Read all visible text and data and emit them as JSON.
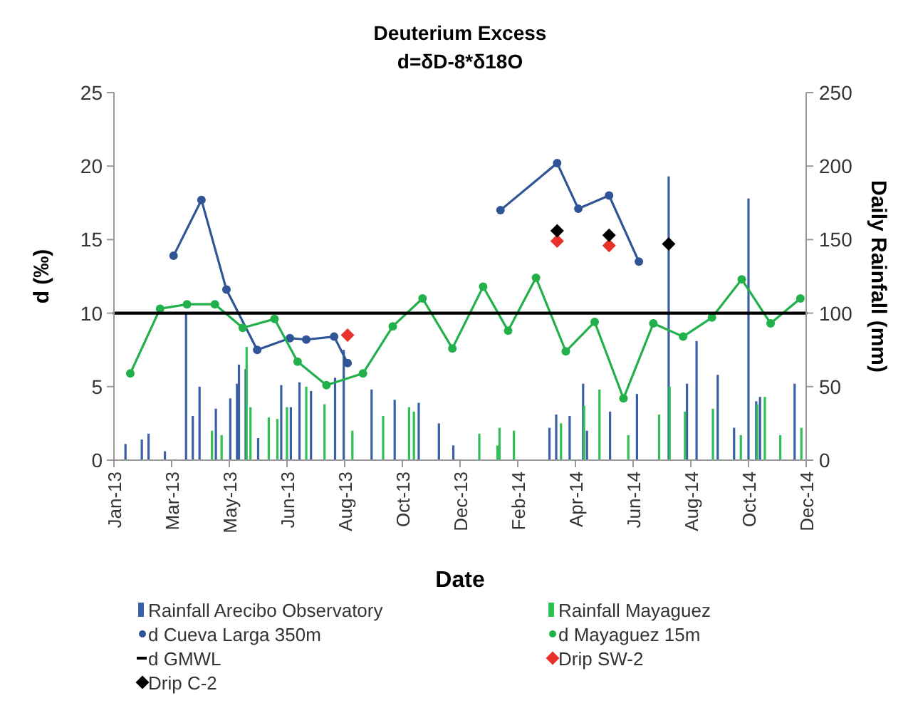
{
  "chart_data": {
    "type": "line",
    "title": "Deuterium Excess",
    "subtitle": "d=δD-8*δ18O",
    "xlabel": "Date",
    "ylabel": "d (‰)",
    "y2label": "Daily Rainfall (mm)",
    "xlim": [
      "2013-01-01",
      "2014-12-22"
    ],
    "xticks": [
      {
        "value": "2013-01-01",
        "label": "Jan-13"
      },
      {
        "value": "2013-03-02",
        "label": "Mar-13"
      },
      {
        "value": "2013-05-01",
        "label": "May-13"
      },
      {
        "value": "2013-06-30",
        "label": "Jun-13"
      },
      {
        "value": "2013-08-29",
        "label": "Aug-13"
      },
      {
        "value": "2013-10-28",
        "label": "Oct-13"
      },
      {
        "value": "2013-12-27",
        "label": "Dec-13"
      },
      {
        "value": "2014-02-25",
        "label": "Feb-14"
      },
      {
        "value": "2014-04-26",
        "label": "Apr-14"
      },
      {
        "value": "2014-06-25",
        "label": "Jun-14"
      },
      {
        "value": "2014-08-24",
        "label": "Aug-14"
      },
      {
        "value": "2014-10-23",
        "label": "Oct-14"
      },
      {
        "value": "2014-12-22",
        "label": "Dec-14"
      }
    ],
    "ylim": [
      0,
      25
    ],
    "yticks": [
      0,
      5,
      10,
      15,
      20,
      25
    ],
    "y2lim": [
      0,
      250
    ],
    "y2ticks": [
      0,
      50,
      100,
      150,
      200,
      250
    ],
    "legend": "bottom",
    "series": [
      {
        "name": "Rainfall Arecibo Observatory",
        "type": "bar",
        "axis": "y2",
        "color": "#3a5ea8",
        "x": [
          "2013-01-13",
          "2013-01-30",
          "2013-02-06",
          "2013-02-23",
          "2013-03-17",
          "2013-03-24",
          "2013-03-31",
          "2013-04-17",
          "2013-05-02",
          "2013-05-09",
          "2013-05-11",
          "2013-05-18",
          "2013-05-31",
          "2013-06-24",
          "2013-07-04",
          "2013-07-13",
          "2013-07-25",
          "2013-08-19",
          "2013-08-28",
          "2013-09-26",
          "2013-10-20",
          "2013-11-14",
          "2013-12-05",
          "2013-12-20",
          "2014-03-30",
          "2014-04-06",
          "2014-04-20",
          "2014-05-04",
          "2014-05-08",
          "2014-06-01",
          "2014-06-29",
          "2014-08-01",
          "2014-08-20",
          "2014-08-30",
          "2014-09-21",
          "2014-10-08",
          "2014-10-23",
          "2014-10-31",
          "2014-11-04",
          "2014-12-10"
        ],
        "values": [
          11,
          14,
          18,
          6,
          100,
          30,
          50,
          35,
          42,
          52,
          65,
          62,
          15,
          51,
          36,
          53,
          47,
          56,
          75,
          48,
          41,
          39,
          25,
          10,
          22,
          31,
          30,
          52,
          20,
          33,
          45,
          193,
          52,
          81,
          58,
          22,
          178,
          40,
          43,
          52
        ]
      },
      {
        "name": "Rainfall Mayaguez",
        "type": "bar",
        "axis": "y2",
        "color": "#2fbf55",
        "x": [
          "2013-04-13",
          "2013-04-23",
          "2013-05-19",
          "2013-05-23",
          "2013-06-11",
          "2013-06-20",
          "2013-06-30",
          "2013-07-20",
          "2013-08-08",
          "2013-09-06",
          "2013-10-08",
          "2013-11-04",
          "2013-11-09",
          "2014-01-16",
          "2014-02-04",
          "2014-02-06",
          "2014-02-21",
          "2014-04-11",
          "2014-05-05",
          "2014-05-21",
          "2014-06-20",
          "2014-07-22",
          "2014-08-02",
          "2014-08-18",
          "2014-09-16",
          "2014-10-15",
          "2014-11-01",
          "2014-11-09",
          "2014-11-25",
          "2014-12-17"
        ],
        "values": [
          20,
          17,
          77,
          36,
          29,
          28,
          36,
          50,
          38,
          20,
          30,
          36,
          33,
          18,
          10,
          22,
          20,
          25,
          37,
          48,
          17,
          31,
          50,
          33,
          35,
          17,
          38,
          43,
          17,
          22
        ]
      },
      {
        "name": "d Cueva Larga 350m",
        "marker": "circle",
        "color": "#2f5597",
        "x": [
          "2013-03-04",
          "2013-04-02",
          "2013-04-28",
          "2013-05-30",
          "2013-07-03",
          "2013-07-20",
          "2013-08-18",
          "2013-09-01",
          null,
          "2014-02-07",
          "2014-04-07",
          "2014-04-29",
          "2014-05-31",
          "2014-07-01"
        ],
        "values": [
          13.9,
          17.7,
          11.6,
          7.5,
          8.3,
          8.2,
          8.4,
          6.6,
          null,
          17.0,
          20.2,
          17.1,
          18.0,
          13.5
        ]
      },
      {
        "name": "d Mayaguez 15m",
        "marker": "circle",
        "color": "#22b04b",
        "x": [
          "2013-01-18",
          "2013-02-18",
          "2013-03-18",
          "2013-04-16",
          "2013-05-15",
          "2013-06-17",
          "2013-07-11",
          "2013-08-10",
          "2013-09-17",
          "2013-10-18",
          "2013-11-18",
          "2013-12-19",
          "2014-01-20",
          "2014-02-15",
          "2014-03-16",
          "2014-04-16",
          "2014-05-16",
          "2014-06-15",
          "2014-07-16",
          "2014-08-16",
          "2014-09-15",
          "2014-10-16",
          "2014-11-15",
          "2014-12-16"
        ],
        "values": [
          5.9,
          10.3,
          10.6,
          10.6,
          9.0,
          9.6,
          6.7,
          5.1,
          5.9,
          9.1,
          11.0,
          7.6,
          11.8,
          8.8,
          12.4,
          7.4,
          9.4,
          4.2,
          9.3,
          8.4,
          9.7,
          12.3,
          9.3,
          11.0
        ]
      },
      {
        "name": "d GMWL",
        "marker": "none",
        "color": "#000000",
        "x": [
          "2013-01-01",
          "2014-12-22"
        ],
        "values": [
          10,
          10
        ]
      },
      {
        "name": "Drip SW-2",
        "type": "scatter",
        "marker": "diamond",
        "color": "#e8312a",
        "x": [
          "2013-09-01",
          "2014-04-07",
          "2014-05-31"
        ],
        "values": [
          8.5,
          14.9,
          14.6
        ]
      },
      {
        "name": "Drip C-2",
        "type": "scatter",
        "marker": "diamond",
        "color": "#000000",
        "x": [
          "2014-04-07",
          "2014-05-31",
          "2014-08-01"
        ],
        "values": [
          15.6,
          15.3,
          14.7
        ]
      }
    ]
  }
}
